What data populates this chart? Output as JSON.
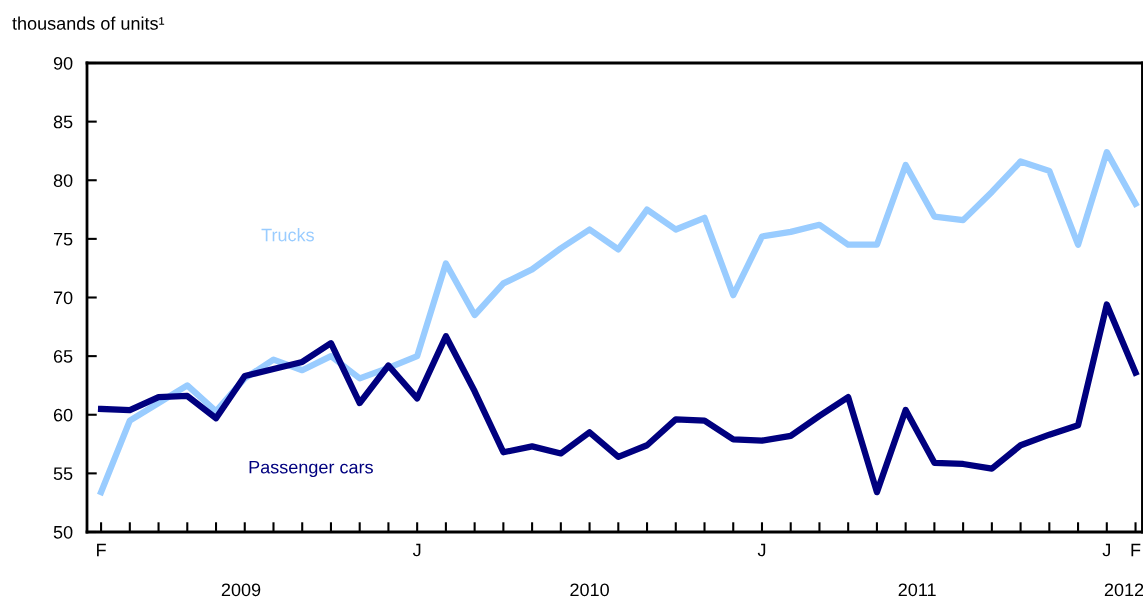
{
  "chart_data": {
    "type": "line",
    "ylabel": "thousands of units¹",
    "categories": [
      "F",
      null,
      null,
      null,
      null,
      null,
      null,
      null,
      null,
      null,
      null,
      "J",
      null,
      null,
      null,
      null,
      null,
      null,
      null,
      null,
      null,
      null,
      null,
      "J",
      null,
      null,
      null,
      null,
      null,
      null,
      null,
      null,
      null,
      null,
      null,
      "J",
      "F"
    ],
    "series": [
      {
        "name": "Trucks",
        "color": "#99ccff",
        "values": [
          53.4,
          59.5,
          61.0,
          62.5,
          60.3,
          63.1,
          64.7,
          63.8,
          65.0,
          63.1,
          64.0,
          65.0,
          72.9,
          68.5,
          71.2,
          72.4,
          74.2,
          75.8,
          74.1,
          77.5,
          75.8,
          76.8,
          70.2,
          75.2,
          75.6,
          76.2,
          74.5,
          74.5,
          81.3,
          76.9,
          76.6,
          79.0,
          81.6,
          80.8,
          74.5,
          82.4,
          78.0
        ]
      },
      {
        "name": "Passenger cars",
        "color": "#00007f",
        "values": [
          60.5,
          60.4,
          61.5,
          61.6,
          59.7,
          63.3,
          63.9,
          64.5,
          66.1,
          61.0,
          64.2,
          61.4,
          66.7,
          62.0,
          56.8,
          57.3,
          56.7,
          58.5,
          56.4,
          57.4,
          59.6,
          59.5,
          57.9,
          57.8,
          58.2,
          59.9,
          61.5,
          53.4,
          60.4,
          55.9,
          55.8,
          55.4,
          57.4,
          58.3,
          59.1,
          69.4,
          63.6
        ]
      }
    ],
    "annotations": [
      "2009",
      "2010",
      "2011",
      "2012"
    ],
    "ylim": [
      50,
      90
    ],
    "yticks": [
      50,
      55,
      60,
      65,
      70,
      75,
      80,
      85,
      90
    ],
    "grid": false,
    "legend": false,
    "marker": "none",
    "line_style": "solid"
  }
}
